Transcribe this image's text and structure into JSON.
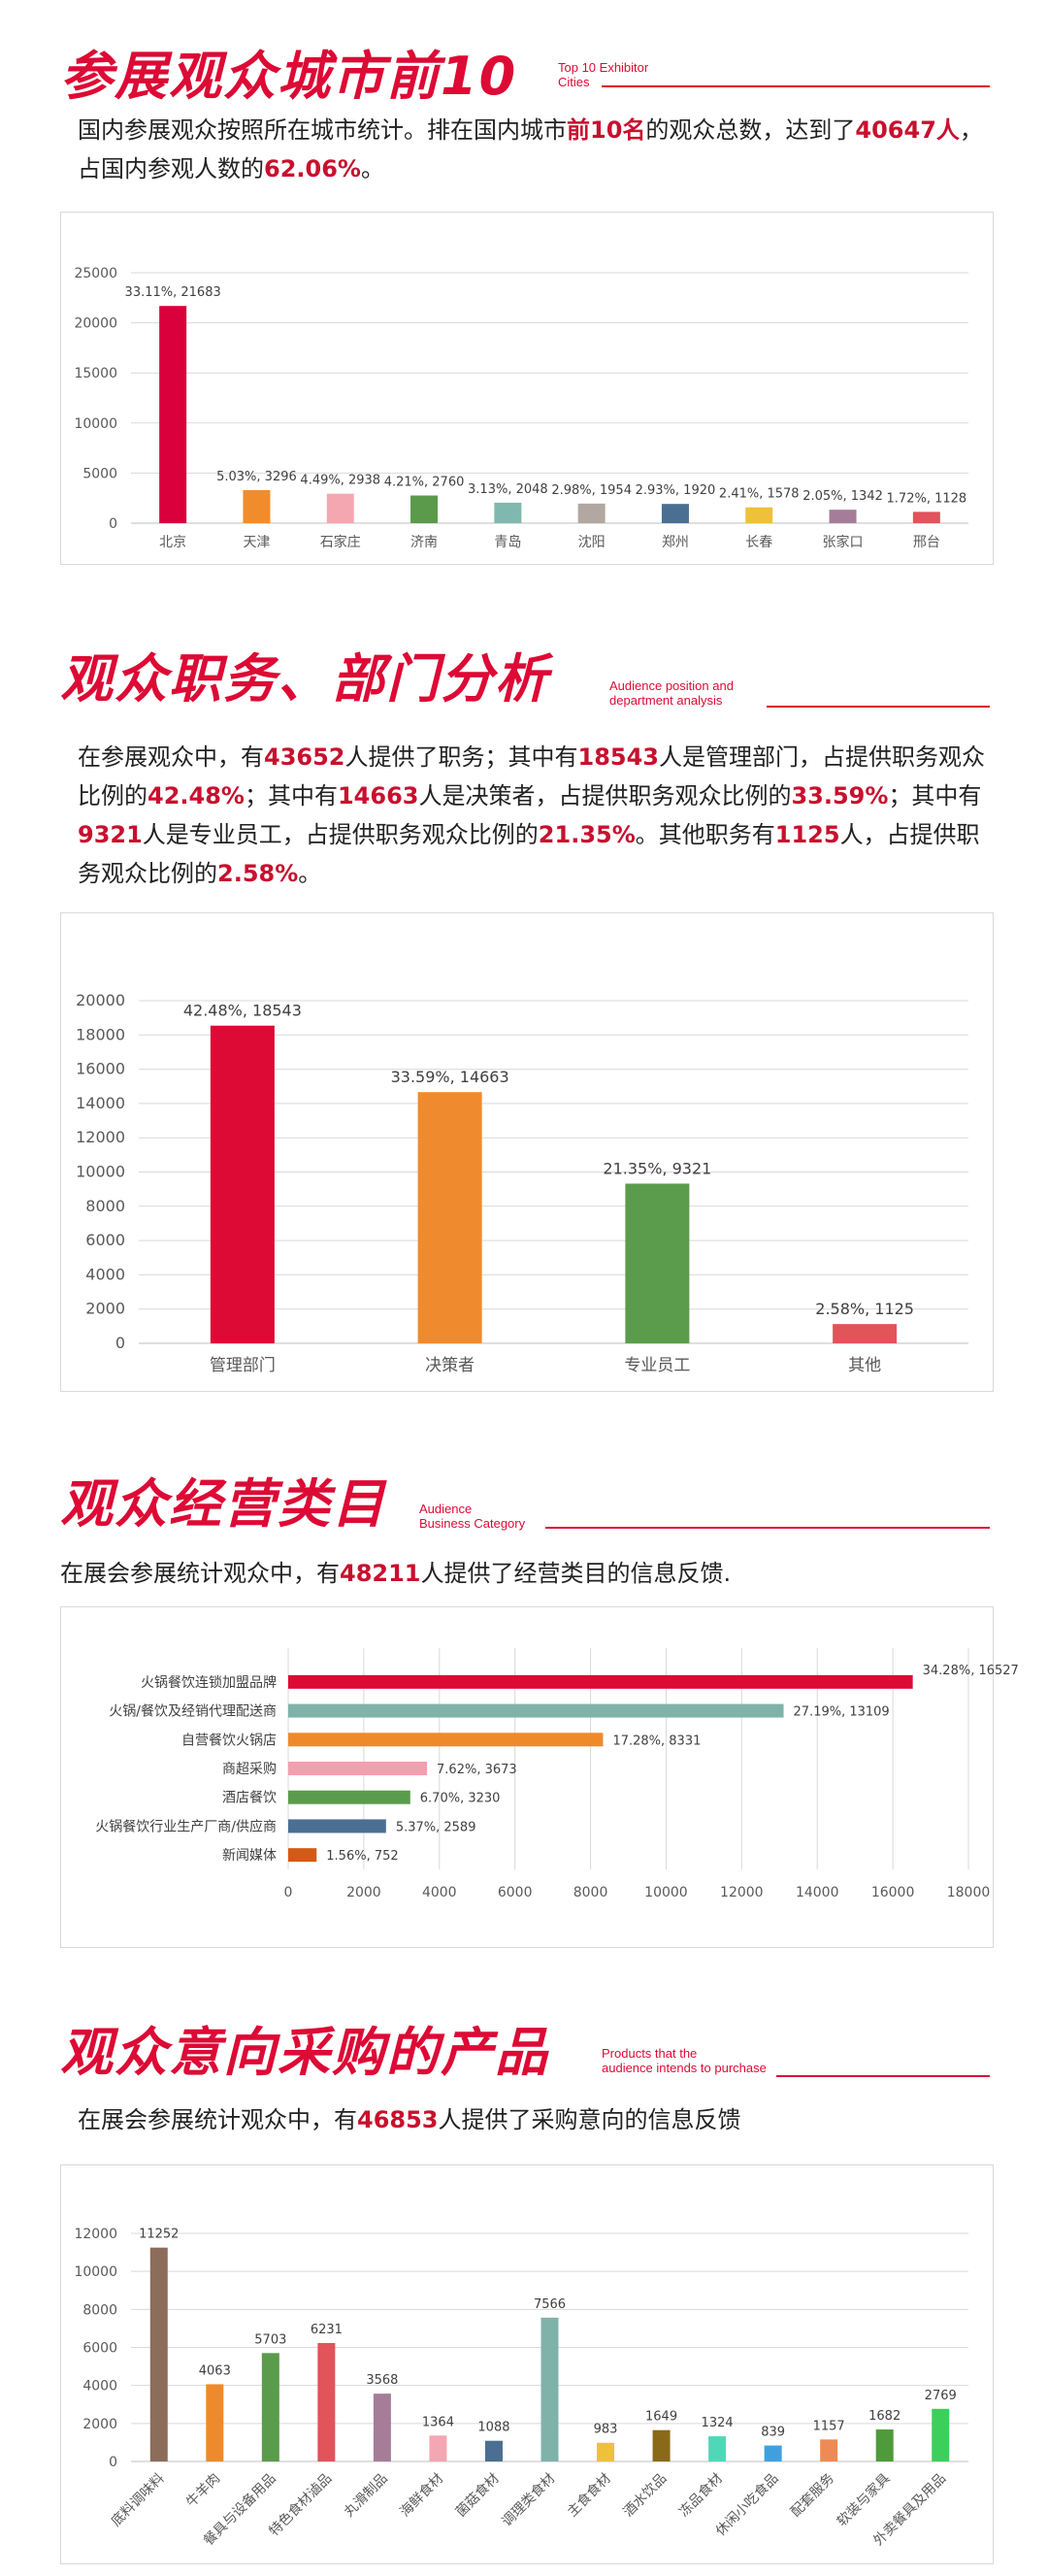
{
  "sections": [
    {
      "title": "参展观众城市前10",
      "subtitle_en": [
        "Top 10 Exhibitor",
        "Cities"
      ],
      "paragraph": [
        {
          "t": "国内参展观众按照所在城市统计。排在国内城市"
        },
        {
          "t": "前10名",
          "hl": true
        },
        {
          "t": "的观众总数，达到了"
        },
        {
          "t": "40647人",
          "hl": true
        },
        {
          "t": "，占国内参观人数的"
        },
        {
          "t": "62.06%",
          "hl": true
        },
        {
          "t": "。"
        }
      ]
    },
    {
      "title": "观众职务、部门分析",
      "subtitle_en": [
        "Audience position and",
        "department analysis"
      ],
      "paragraph": [
        {
          "t": "在参展观众中，有"
        },
        {
          "t": "43652",
          "hl": true
        },
        {
          "t": "人提供了职务；其中有"
        },
        {
          "t": "18543",
          "hl": true
        },
        {
          "t": "人是管理部门，占提供职务观众比例的"
        },
        {
          "t": "42.48%",
          "hl": true
        },
        {
          "t": "；其中有"
        },
        {
          "t": "14663",
          "hl": true
        },
        {
          "t": "人是决策者，占提供职务观众比例的"
        },
        {
          "t": "33.59%",
          "hl": true
        },
        {
          "t": "；其中有"
        },
        {
          "t": "9321",
          "hl": true
        },
        {
          "t": "人是专业员工，占提供职务观众比例的"
        },
        {
          "t": "21.35%",
          "hl": true
        },
        {
          "t": "。其他职务有"
        },
        {
          "t": "1125",
          "hl": true
        },
        {
          "t": "人，占提供职务观众比例的"
        },
        {
          "t": "2.58%",
          "hl": true
        },
        {
          "t": "。"
        }
      ]
    },
    {
      "title": "观众经营类目",
      "subtitle_en": [
        "Audience",
        "Business Category"
      ],
      "paragraph": [
        {
          "t": "在展会参展统计观众中，有"
        },
        {
          "t": "48211",
          "hl": true
        },
        {
          "t": "人提供了经营类目的信息反馈."
        }
      ]
    },
    {
      "title": "观众意向采购的产品",
      "subtitle_en": [
        "Products that the",
        "audience intends to purchase"
      ],
      "paragraph": [
        {
          "t": "在展会参展统计观众中，有"
        },
        {
          "t": "46853",
          "hl": true
        },
        {
          "t": "人提供了采购意向的信息反馈"
        }
      ]
    }
  ],
  "chart_data": [
    {
      "type": "bar",
      "categories": [
        "北京",
        "天津",
        "石家庄",
        "济南",
        "青岛",
        "沈阳",
        "郑州",
        "长春",
        "张家口",
        "邢台"
      ],
      "values": [
        21683,
        3296,
        2938,
        2760,
        2048,
        1954,
        1920,
        1578,
        1342,
        1128
      ],
      "data_labels": [
        "33.11%, 21683",
        "5.03%, 3296",
        "4.49%, 2938",
        "4.21%, 2760",
        "3.13%, 2048",
        "2.98%, 1954",
        "2.93%, 1920",
        "2.41%, 1578",
        "2.05%, 1342",
        "1.72%, 1128"
      ],
      "colors": [
        "#d9003c",
        "#f08c2c",
        "#f4a7b0",
        "#5a9a4a",
        "#7fb8ae",
        "#b2a8a1",
        "#4a6f92",
        "#efc13a",
        "#a57d98",
        "#e0545a"
      ],
      "yticks": [
        0,
        5000,
        10000,
        15000,
        20000,
        25000
      ],
      "ylim": [
        0,
        25000
      ],
      "grid": true
    },
    {
      "type": "bar",
      "categories": [
        "管理部门",
        "决策者",
        "专业员工",
        "其他"
      ],
      "values": [
        18543,
        14663,
        9321,
        1125
      ],
      "data_labels": [
        "42.48%, 18543",
        "33.59%, 14663",
        "21.35%, 9321",
        "2.58%, 1125"
      ],
      "colors": [
        "#dd0a35",
        "#f08a2e",
        "#5a9c4b",
        "#e0545a"
      ],
      "yticks": [
        0,
        2000,
        4000,
        6000,
        8000,
        10000,
        12000,
        14000,
        16000,
        18000,
        20000
      ],
      "ylim": [
        0,
        20000
      ],
      "grid": true
    },
    {
      "type": "bar",
      "orientation": "horizontal",
      "categories": [
        "火锅餐饮连锁加盟品牌",
        "火锅/餐饮及经销代理配送商",
        "自营餐饮火锅店",
        "商超采购",
        "酒店餐饮",
        "火锅餐饮行业生产厂商/供应商",
        "新闻媒体"
      ],
      "values": [
        16527,
        13109,
        8331,
        3673,
        3230,
        2589,
        752
      ],
      "data_labels": [
        "34.28%, 16527",
        "27.19%, 13109",
        "17.28%, 8331",
        "7.62%, 3673",
        "6.70%, 3230",
        "5.37%, 2589",
        "1.56%, 752"
      ],
      "colors": [
        "#dd0a35",
        "#7fb3aa",
        "#ee8a2c",
        "#f2a0ae",
        "#5a9c4b",
        "#4a6f92",
        "#d35a16"
      ],
      "xticks": [
        0,
        2000,
        4000,
        6000,
        8000,
        10000,
        12000,
        14000,
        16000,
        18000
      ],
      "xlim": [
        0,
        18000
      ],
      "grid": true
    },
    {
      "type": "bar",
      "categories": [
        "底料调味料",
        "牛羊肉",
        "餐具与设备用品",
        "特色食材滷品",
        "丸滑制品",
        "海鲜食材",
        "菌菇食材",
        "调理类食材",
        "主食食材",
        "酒水饮品",
        "冻品食材",
        "休闲小吃食品",
        "配套服务",
        "软装与家具",
        "外卖餐具及用品"
      ],
      "values": [
        11252,
        4063,
        5703,
        6231,
        3568,
        1364,
        1088,
        7566,
        983,
        1649,
        1324,
        839,
        1157,
        1682,
        2769
      ],
      "data_labels": [
        "11252",
        "4063",
        "5703",
        "6231",
        "3568",
        "1364",
        "1088",
        "7566",
        "983",
        "1649",
        "1324",
        "839",
        "1157",
        "1682",
        "2769"
      ],
      "colors": [
        "#8c6d5a",
        "#ee8a2c",
        "#5a9c4b",
        "#e0545a",
        "#a57d98",
        "#f4a7b0",
        "#4a6f92",
        "#7fb3aa",
        "#efc13a",
        "#8a6a18",
        "#4fd8b8",
        "#3fa0e0",
        "#ee8a55",
        "#4f9a3a",
        "#3ccf5c"
      ],
      "yticks": [
        0,
        2000,
        4000,
        6000,
        8000,
        10000,
        12000
      ],
      "ylim": [
        0,
        12000
      ],
      "grid": true
    }
  ]
}
